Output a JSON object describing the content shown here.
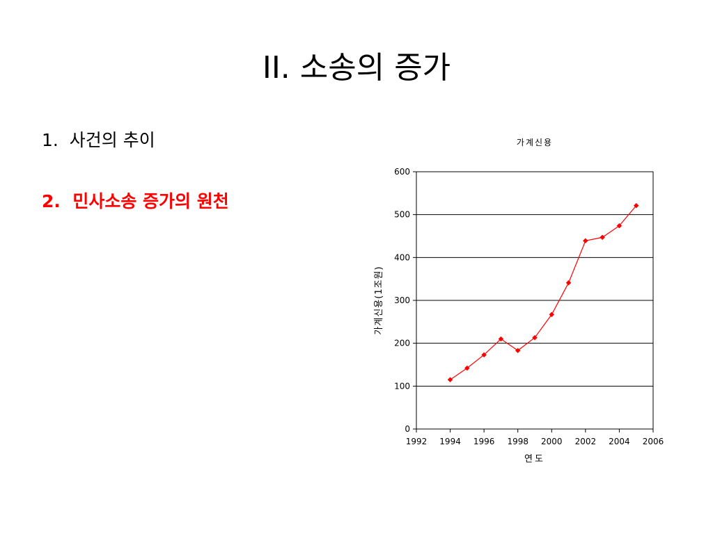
{
  "slide": {
    "title": "II. 소송의 증가",
    "bullets": [
      {
        "number": "1.",
        "text": "사건의 추이"
      },
      {
        "number": "2.",
        "text": "민사소송 증가의 원천"
      }
    ]
  },
  "colors": {
    "series": "#ff0000",
    "highlight_bullet": "#ff0000"
  },
  "chart_data": {
    "type": "line",
    "title": "가계신용",
    "xlabel": "연도",
    "ylabel": "가계신용(1조원)",
    "xlim": [
      1992,
      2006
    ],
    "ylim": [
      0,
      600
    ],
    "xticks": [
      1992,
      1994,
      1996,
      1998,
      2000,
      2002,
      2004,
      2006
    ],
    "yticks": [
      0,
      100,
      200,
      300,
      400,
      500,
      600
    ],
    "grid": "horizontal",
    "legend": "none",
    "series": [
      {
        "x": [
          1994,
          1995,
          1996,
          1997,
          1998,
          1999,
          2000,
          2001,
          2002,
          2003,
          2004,
          2005
        ],
        "y": [
          115,
          142,
          173,
          210,
          183,
          213,
          267,
          341,
          439,
          447,
          474,
          521
        ]
      }
    ]
  }
}
